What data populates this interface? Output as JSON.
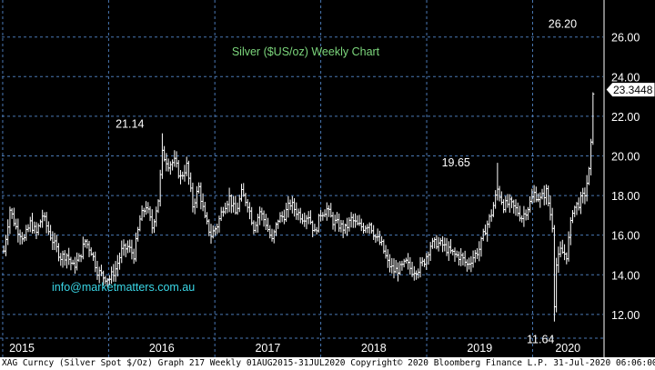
{
  "chart_data": {
    "type": "ohlc",
    "title": "Silver ($US/oz) Weekly Chart",
    "watermark": "info@marketmatters.com.au",
    "xlabel": "",
    "ylabel": "",
    "ylim": [
      10.8,
      27.5
    ],
    "y_ticks": [
      12.0,
      14.0,
      16.0,
      18.0,
      20.0,
      22.0,
      24.0,
      26.0
    ],
    "y_tick_labels": [
      "12.00",
      "14.00",
      "16.00",
      "18.00",
      "20.00",
      "22.00",
      "24.00",
      "26.00"
    ],
    "x_range": [
      "2014-12-29",
      "2020-08-31"
    ],
    "year_ticks": [
      "2015-01-01",
      "2016-01-01",
      "2017-01-01",
      "2018-01-01",
      "2019-01-01",
      "2020-01-01"
    ],
    "year_labels": [
      "2015",
      "2016",
      "2017",
      "2018",
      "2019",
      "2020"
    ],
    "last_price": {
      "value": 23.3448,
      "label": "23.3448"
    },
    "annotations": [
      {
        "label": "21.14",
        "date": "2016-07-04",
        "value": 21.14,
        "position": "above-left"
      },
      {
        "label": "19.65",
        "date": "2019-09-02",
        "value": 19.65,
        "position": "left"
      },
      {
        "label": "11.64",
        "date": "2020-03-16",
        "value": 11.64,
        "position": "below"
      },
      {
        "label": "26.20",
        "date": "2020-08-03",
        "value": 26.2,
        "position": "above-left"
      }
    ],
    "series": [
      {
        "points": [
          [
            "2015-01-05",
            15.2
          ],
          [
            "2015-01-26",
            17.3
          ],
          [
            "2015-02-16",
            16.4
          ],
          [
            "2015-03-16",
            15.8
          ],
          [
            "2015-04-06",
            16.6
          ],
          [
            "2015-04-27",
            16.1
          ],
          [
            "2015-05-18",
            17.0
          ],
          [
            "2015-06-08",
            16.2
          ],
          [
            "2015-06-29",
            15.5
          ],
          [
            "2015-07-20",
            14.9
          ],
          [
            "2015-08-10",
            15.0
          ],
          [
            "2015-08-31",
            14.4
          ],
          [
            "2015-09-21",
            14.8
          ],
          [
            "2015-10-12",
            15.7
          ],
          [
            "2015-11-02",
            15.2
          ],
          [
            "2015-11-23",
            14.2
          ],
          [
            "2015-12-14",
            13.9
          ],
          [
            "2016-01-04",
            13.8
          ],
          [
            "2016-01-25",
            14.3
          ],
          [
            "2016-02-15",
            15.2
          ],
          [
            "2016-03-07",
            15.4
          ],
          [
            "2016-03-28",
            15.0
          ],
          [
            "2016-04-18",
            16.8
          ],
          [
            "2016-05-09",
            17.5
          ],
          [
            "2016-05-30",
            16.4
          ],
          [
            "2016-06-20",
            17.8
          ],
          [
            "2016-07-04",
            20.1
          ],
          [
            "2016-07-25",
            19.6
          ],
          [
            "2016-08-15",
            19.7
          ],
          [
            "2016-09-05",
            18.9
          ],
          [
            "2016-09-26",
            19.5
          ],
          [
            "2016-10-17",
            17.5
          ],
          [
            "2016-11-07",
            18.4
          ],
          [
            "2016-11-28",
            16.8
          ],
          [
            "2016-12-19",
            16.0
          ],
          [
            "2017-01-09",
            16.5
          ],
          [
            "2017-01-30",
            17.4
          ],
          [
            "2017-02-20",
            17.9
          ],
          [
            "2017-03-13",
            17.1
          ],
          [
            "2017-04-03",
            18.1
          ],
          [
            "2017-04-24",
            17.6
          ],
          [
            "2017-05-15",
            16.4
          ],
          [
            "2017-06-05",
            17.2
          ],
          [
            "2017-06-26",
            16.6
          ],
          [
            "2017-07-17",
            15.7
          ],
          [
            "2017-08-07",
            16.8
          ],
          [
            "2017-08-28",
            17.0
          ],
          [
            "2017-09-18",
            17.6
          ],
          [
            "2017-10-09",
            17.2
          ],
          [
            "2017-10-30",
            16.9
          ],
          [
            "2017-11-20",
            17.0
          ],
          [
            "2017-12-11",
            16.1
          ],
          [
            "2018-01-01",
            17.1
          ],
          [
            "2018-01-22",
            17.3
          ],
          [
            "2018-02-12",
            16.7
          ],
          [
            "2018-03-05",
            16.5
          ],
          [
            "2018-03-26",
            16.3
          ],
          [
            "2018-04-16",
            16.8
          ],
          [
            "2018-05-07",
            16.5
          ],
          [
            "2018-05-28",
            16.4
          ],
          [
            "2018-06-18",
            16.6
          ],
          [
            "2018-07-09",
            15.9
          ],
          [
            "2018-07-30",
            15.5
          ],
          [
            "2018-08-20",
            14.6
          ],
          [
            "2018-09-10",
            14.2
          ],
          [
            "2018-10-01",
            14.3
          ],
          [
            "2018-10-22",
            14.6
          ],
          [
            "2018-11-12",
            14.2
          ],
          [
            "2018-12-03",
            14.3
          ],
          [
            "2018-12-24",
            14.7
          ],
          [
            "2019-01-14",
            15.5
          ],
          [
            "2019-02-04",
            15.6
          ],
          [
            "2019-02-25",
            15.5
          ],
          [
            "2019-03-18",
            15.2
          ],
          [
            "2019-04-08",
            15.0
          ],
          [
            "2019-04-29",
            14.9
          ],
          [
            "2019-05-20",
            14.5
          ],
          [
            "2019-06-10",
            14.9
          ],
          [
            "2019-07-01",
            15.3
          ],
          [
            "2019-07-22",
            16.3
          ],
          [
            "2019-08-12",
            17.1
          ],
          [
            "2019-09-02",
            18.3
          ],
          [
            "2019-09-23",
            17.5
          ],
          [
            "2019-10-14",
            17.6
          ],
          [
            "2019-11-04",
            17.3
          ],
          [
            "2019-11-25",
            16.9
          ],
          [
            "2019-12-16",
            17.4
          ],
          [
            "2020-01-06",
            18.1
          ],
          [
            "2020-01-27",
            17.8
          ],
          [
            "2020-02-17",
            18.2
          ],
          [
            "2020-03-09",
            16.5
          ],
          [
            "2020-03-16",
            12.6
          ],
          [
            "2020-03-23",
            14.5
          ],
          [
            "2020-04-06",
            15.2
          ],
          [
            "2020-04-27",
            15.0
          ],
          [
            "2020-05-18",
            17.3
          ],
          [
            "2020-06-08",
            17.6
          ],
          [
            "2020-06-29",
            18.1
          ],
          [
            "2020-07-13",
            19.2
          ],
          [
            "2020-07-20",
            20.5
          ],
          [
            "2020-07-27",
            23.3
          ]
        ]
      }
    ],
    "grid": true,
    "legend": "none"
  },
  "footer": {
    "text": "XAG Curncy (Silver Spot  $/Oz) Graph 217  Weekly 01AUG2015-31JUL2020  Copyright© 2020 Bloomberg Finance L.P.  31-Jul-2020 06:06:00"
  },
  "colors": {
    "background": "#000000",
    "grid": "#4a78b4",
    "bars": "#ffffff",
    "title": "#7cd67c",
    "watermark": "#3ad6e6",
    "axis_text": "#ffffff",
    "footer_bg": "#ffffff"
  }
}
